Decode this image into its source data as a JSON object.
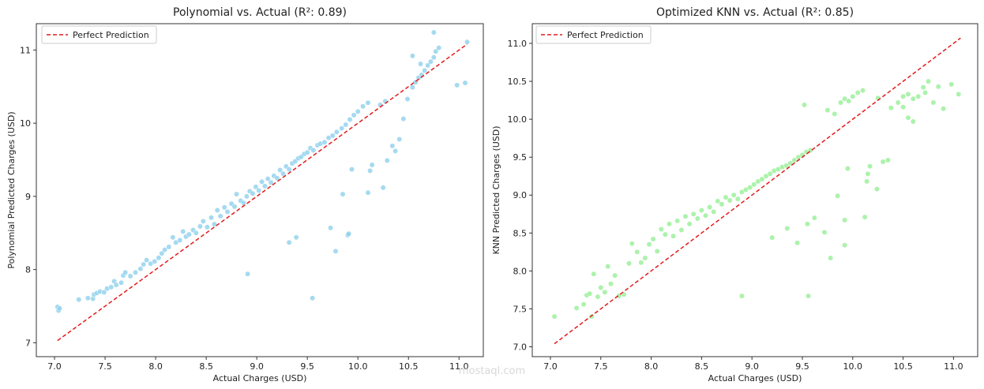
{
  "watermark": "mostaql.com",
  "chart_data": [
    {
      "type": "scatter",
      "title": "Polynomial vs. Actual (R²: 0.89)",
      "xlabel": "Actual Charges (USD)",
      "ylabel": "Polynomial Predicted Charges (USD)",
      "xlim": [
        6.82,
        11.24
      ],
      "ylim": [
        6.81,
        11.36
      ],
      "xticks": [
        7.0,
        7.5,
        8.0,
        8.5,
        9.0,
        9.5,
        10.0,
        10.5,
        11.0
      ],
      "xtick_labels": [
        "7.0",
        "7.5",
        "8.0",
        "8.5",
        "9.0",
        "9.5",
        "10.0",
        "10.5",
        "11.0"
      ],
      "yticks": [
        7,
        8,
        9,
        10,
        11
      ],
      "ytick_labels": [
        "7",
        "8",
        "9",
        "10",
        "11"
      ],
      "grid": false,
      "legend_position": "top-left",
      "point_color": "#87ceeb",
      "series": [
        {
          "name": "",
          "points": [
            [
              7.03,
              7.49
            ],
            [
              7.04,
              7.44
            ],
            [
              7.05,
              7.47
            ],
            [
              7.24,
              7.59
            ],
            [
              7.33,
              7.61
            ],
            [
              7.38,
              7.6
            ],
            [
              7.39,
              7.66
            ],
            [
              7.42,
              7.68
            ],
            [
              7.45,
              7.7
            ],
            [
              7.49,
              7.69
            ],
            [
              7.52,
              7.74
            ],
            [
              7.56,
              7.76
            ],
            [
              7.59,
              7.84
            ],
            [
              7.61,
              7.79
            ],
            [
              7.66,
              7.82
            ],
            [
              7.68,
              7.92
            ],
            [
              7.7,
              7.96
            ],
            [
              7.75,
              7.91
            ],
            [
              7.8,
              7.96
            ],
            [
              7.85,
              8.01
            ],
            [
              7.88,
              8.07
            ],
            [
              7.91,
              8.13
            ],
            [
              7.95,
              8.08
            ],
            [
              7.99,
              8.11
            ],
            [
              8.03,
              8.16
            ],
            [
              8.06,
              8.22
            ],
            [
              8.09,
              8.27
            ],
            [
              8.13,
              8.31
            ],
            [
              8.17,
              8.44
            ],
            [
              8.2,
              8.37
            ],
            [
              8.24,
              8.4
            ],
            [
              8.27,
              8.52
            ],
            [
              8.3,
              8.45
            ],
            [
              8.33,
              8.48
            ],
            [
              8.37,
              8.54
            ],
            [
              8.4,
              8.5
            ],
            [
              8.44,
              8.59
            ],
            [
              8.47,
              8.66
            ],
            [
              8.51,
              8.58
            ],
            [
              8.55,
              8.71
            ],
            [
              8.58,
              8.62
            ],
            [
              8.61,
              8.81
            ],
            [
              8.64,
              8.73
            ],
            [
              8.68,
              8.85
            ],
            [
              8.71,
              8.79
            ],
            [
              8.75,
              8.9
            ],
            [
              8.78,
              8.86
            ],
            [
              8.8,
              9.03
            ],
            [
              8.84,
              8.94
            ],
            [
              8.87,
              8.91
            ],
            [
              8.9,
              9.0
            ],
            [
              8.93,
              9.07
            ],
            [
              8.96,
              9.04
            ],
            [
              8.99,
              9.13
            ],
            [
              9.02,
              9.08
            ],
            [
              9.05,
              9.2
            ],
            [
              9.08,
              9.14
            ],
            [
              9.11,
              9.24
            ],
            [
              9.14,
              9.19
            ],
            [
              9.17,
              9.28
            ],
            [
              9.2,
              9.25
            ],
            [
              9.23,
              9.36
            ],
            [
              9.26,
              9.31
            ],
            [
              9.29,
              9.41
            ],
            [
              9.32,
              9.37
            ],
            [
              9.35,
              9.45
            ],
            [
              9.38,
              9.48
            ],
            [
              9.41,
              9.52
            ],
            [
              9.44,
              9.54
            ],
            [
              9.47,
              9.58
            ],
            [
              9.5,
              9.6
            ],
            [
              9.53,
              9.66
            ],
            [
              9.56,
              9.63
            ],
            [
              9.6,
              9.7
            ],
            [
              9.63,
              9.72
            ],
            [
              9.67,
              9.74
            ],
            [
              9.71,
              9.8
            ],
            [
              9.75,
              9.83
            ],
            [
              9.79,
              9.88
            ],
            [
              9.84,
              9.93
            ],
            [
              9.88,
              9.98
            ],
            [
              9.92,
              10.05
            ],
            [
              9.96,
              10.11
            ],
            [
              10.0,
              10.16
            ],
            [
              10.05,
              10.23
            ],
            [
              10.1,
              10.28
            ],
            [
              10.22,
              10.25
            ],
            [
              10.27,
              10.3
            ],
            [
              10.54,
              10.49
            ],
            [
              10.57,
              10.56
            ],
            [
              10.6,
              10.62
            ],
            [
              10.63,
              10.66
            ],
            [
              10.66,
              10.72
            ],
            [
              10.69,
              10.79
            ],
            [
              10.72,
              10.84
            ],
            [
              10.75,
              10.9
            ],
            [
              10.77,
              10.98
            ],
            [
              10.8,
              11.03
            ],
            [
              10.54,
              10.92
            ],
            [
              10.62,
              10.81
            ],
            [
              10.75,
              11.24
            ],
            [
              10.98,
              10.52
            ],
            [
              11.06,
              10.55
            ],
            [
              11.08,
              11.11
            ],
            [
              8.91,
              7.94
            ],
            [
              9.55,
              7.61
            ],
            [
              9.32,
              8.37
            ],
            [
              9.39,
              8.44
            ],
            [
              9.73,
              8.57
            ],
            [
              9.78,
              8.25
            ],
            [
              9.9,
              8.47
            ],
            [
              9.91,
              8.49
            ],
            [
              9.85,
              9.03
            ],
            [
              9.94,
              9.37
            ],
            [
              10.12,
              9.35
            ],
            [
              10.14,
              9.43
            ],
            [
              10.1,
              9.05
            ],
            [
              10.25,
              9.12
            ],
            [
              10.29,
              9.49
            ],
            [
              10.34,
              9.69
            ],
            [
              10.37,
              9.62
            ],
            [
              10.41,
              9.78
            ],
            [
              10.45,
              10.06
            ],
            [
              10.49,
              10.33
            ]
          ]
        }
      ],
      "reference_line": {
        "name": "Perfect Prediction",
        "color": "#e41a1c",
        "x": [
          7.03,
          11.08
        ],
        "y": [
          7.03,
          11.08
        ]
      }
    },
    {
      "type": "scatter",
      "title": "Optimized KNN vs. Actual (R²: 0.85)",
      "xlabel": "Actual Charges (USD)",
      "ylabel": "KNN Predicted Charges (USD)",
      "xlim": [
        6.82,
        11.24
      ],
      "ylim": [
        6.87,
        11.26
      ],
      "xticks": [
        7.0,
        7.5,
        8.0,
        8.5,
        9.0,
        9.5,
        10.0,
        10.5,
        11.0
      ],
      "xtick_labels": [
        "7.0",
        "7.5",
        "8.0",
        "8.5",
        "9.0",
        "9.5",
        "10.0",
        "10.5",
        "11.0"
      ],
      "yticks": [
        7.0,
        7.5,
        8.0,
        8.5,
        9.0,
        9.5,
        10.0,
        10.5,
        11.0
      ],
      "ytick_labels": [
        "7.0",
        "7.5",
        "8.0",
        "8.5",
        "9.0",
        "9.5",
        "10.0",
        "10.5",
        "11.0"
      ],
      "grid": false,
      "legend_position": "top-left",
      "point_color": "#90ee90",
      "series": [
        {
          "name": "",
          "points": [
            [
              7.04,
              7.4
            ],
            [
              7.26,
              7.51
            ],
            [
              7.33,
              7.56
            ],
            [
              7.36,
              7.68
            ],
            [
              7.39,
              7.7
            ],
            [
              7.41,
              7.4
            ],
            [
              7.43,
              7.96
            ],
            [
              7.47,
              7.66
            ],
            [
              7.5,
              7.78
            ],
            [
              7.54,
              7.72
            ],
            [
              7.57,
              8.06
            ],
            [
              7.6,
              7.83
            ],
            [
              7.64,
              7.94
            ],
            [
              7.68,
              7.67
            ],
            [
              7.73,
              7.69
            ],
            [
              7.78,
              8.1
            ],
            [
              7.81,
              8.36
            ],
            [
              7.86,
              8.25
            ],
            [
              7.9,
              8.11
            ],
            [
              7.94,
              8.17
            ],
            [
              7.98,
              8.35
            ],
            [
              8.02,
              8.42
            ],
            [
              8.06,
              8.26
            ],
            [
              8.1,
              8.55
            ],
            [
              8.14,
              8.48
            ],
            [
              8.18,
              8.62
            ],
            [
              8.22,
              8.46
            ],
            [
              8.26,
              8.66
            ],
            [
              8.3,
              8.54
            ],
            [
              8.34,
              8.72
            ],
            [
              8.38,
              8.62
            ],
            [
              8.42,
              8.75
            ],
            [
              8.46,
              8.69
            ],
            [
              8.5,
              8.8
            ],
            [
              8.54,
              8.73
            ],
            [
              8.58,
              8.84
            ],
            [
              8.62,
              8.78
            ],
            [
              8.66,
              8.92
            ],
            [
              8.7,
              8.88
            ],
            [
              8.74,
              8.97
            ],
            [
              8.78,
              8.93
            ],
            [
              8.82,
              9.0
            ],
            [
              8.86,
              8.95
            ],
            [
              8.9,
              9.04
            ],
            [
              8.94,
              9.07
            ],
            [
              8.98,
              9.1
            ],
            [
              9.02,
              9.14
            ],
            [
              9.06,
              9.18
            ],
            [
              9.1,
              9.21
            ],
            [
              9.14,
              9.25
            ],
            [
              9.18,
              9.28
            ],
            [
              9.22,
              9.32
            ],
            [
              9.26,
              9.34
            ],
            [
              9.3,
              9.37
            ],
            [
              9.34,
              9.39
            ],
            [
              9.38,
              9.42
            ],
            [
              9.42,
              9.46
            ],
            [
              9.46,
              9.5
            ],
            [
              9.5,
              9.53
            ],
            [
              9.54,
              9.57
            ],
            [
              9.58,
              9.59
            ],
            [
              9.52,
              10.19
            ],
            [
              9.75,
              10.12
            ],
            [
              9.82,
              10.07
            ],
            [
              9.88,
              10.22
            ],
            [
              9.92,
              10.27
            ],
            [
              9.96,
              10.24
            ],
            [
              10.0,
              10.3
            ],
            [
              10.05,
              10.35
            ],
            [
              10.1,
              10.38
            ],
            [
              10.25,
              10.28
            ],
            [
              10.38,
              10.15
            ],
            [
              10.45,
              10.22
            ],
            [
              10.5,
              10.3
            ],
            [
              10.55,
              10.33
            ],
            [
              10.6,
              10.27
            ],
            [
              10.65,
              10.3
            ],
            [
              10.7,
              10.42
            ],
            [
              10.72,
              10.35
            ],
            [
              10.75,
              10.5
            ],
            [
              10.8,
              10.22
            ],
            [
              10.85,
              10.43
            ],
            [
              10.9,
              10.14
            ],
            [
              10.98,
              10.46
            ],
            [
              11.05,
              10.33
            ],
            [
              10.55,
              10.02
            ],
            [
              10.6,
              9.97
            ],
            [
              10.5,
              10.16
            ],
            [
              8.9,
              7.67
            ],
            [
              9.56,
              7.67
            ],
            [
              9.2,
              8.44
            ],
            [
              9.35,
              8.56
            ],
            [
              9.45,
              8.37
            ],
            [
              9.55,
              8.62
            ],
            [
              9.62,
              8.7
            ],
            [
              9.72,
              8.51
            ],
            [
              9.78,
              8.17
            ],
            [
              9.85,
              8.99
            ],
            [
              9.92,
              8.67
            ],
            [
              9.92,
              8.34
            ],
            [
              9.95,
              9.35
            ],
            [
              10.12,
              8.71
            ],
            [
              10.14,
              9.18
            ],
            [
              10.15,
              9.28
            ],
            [
              10.17,
              9.38
            ],
            [
              10.24,
              9.08
            ],
            [
              10.3,
              9.44
            ],
            [
              10.35,
              9.46
            ]
          ]
        }
      ],
      "reference_line": {
        "name": "Perfect Prediction",
        "color": "#e41a1c",
        "x": [
          7.04,
          11.07
        ],
        "y": [
          7.04,
          11.07
        ]
      }
    }
  ]
}
